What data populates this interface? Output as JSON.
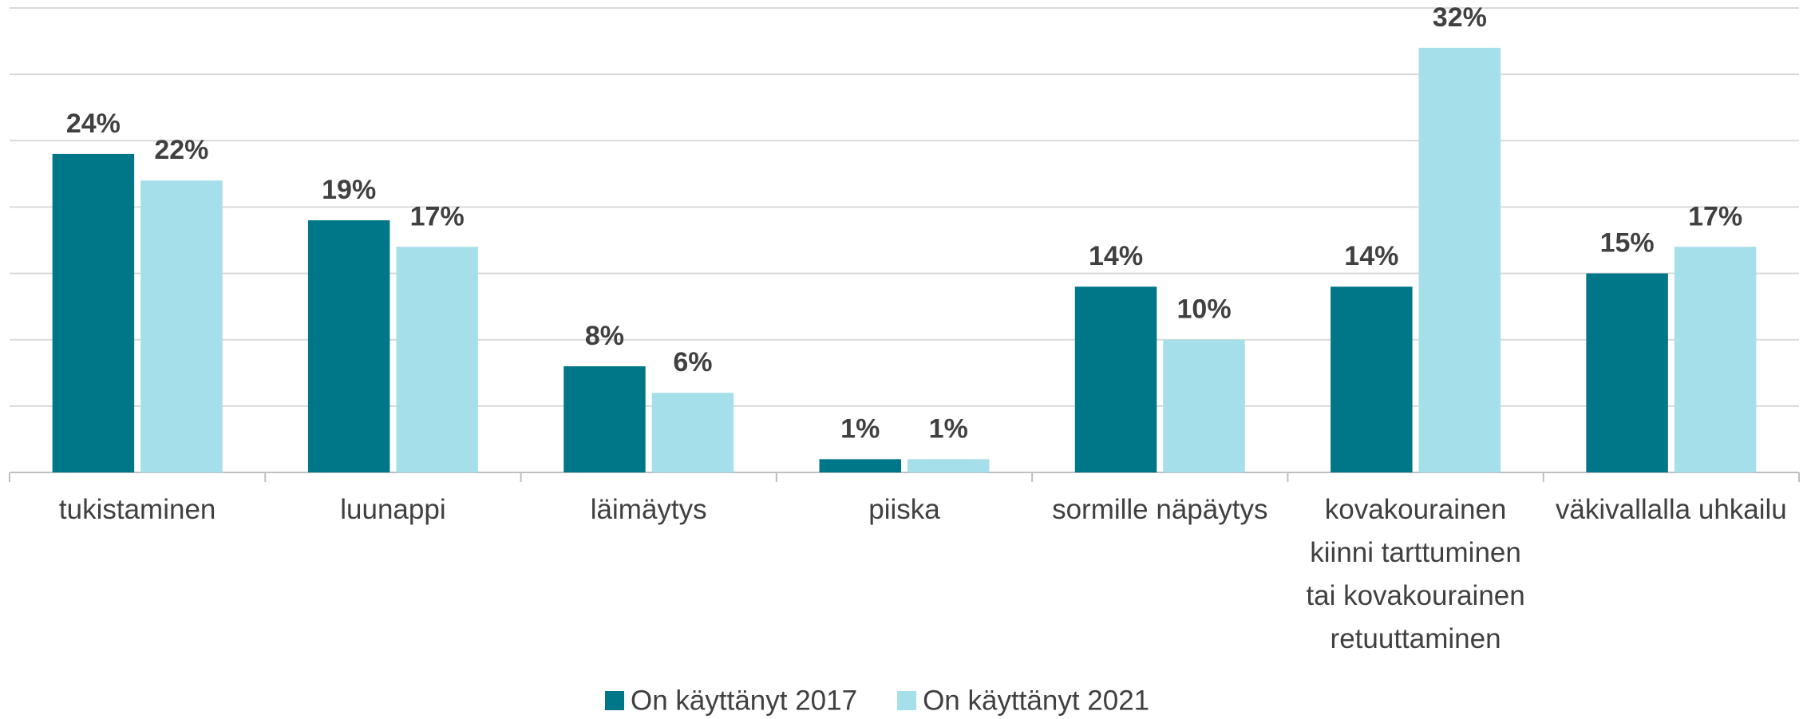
{
  "chart_data": {
    "type": "bar",
    "categories": [
      "tukistaminen",
      "luunappi",
      "läimäytys",
      "piiska",
      "sormille näpäytys",
      "kovakourainen kiinni tarttuminen tai kovakourainen retuuttaminen",
      "väkivallalla uhkailu"
    ],
    "series": [
      {
        "name": "On käyttänyt 2017",
        "color": "#007789",
        "values": [
          24,
          19,
          8,
          1,
          14,
          14,
          15
        ],
        "value_labels": [
          "24%",
          "19%",
          "8%",
          "1%",
          "14%",
          "14%",
          "15%"
        ]
      },
      {
        "name": "On käyttänyt 2021",
        "color": "#a5dfe9",
        "values": [
          22,
          17,
          6,
          1,
          10,
          32,
          17
        ],
        "value_labels": [
          "22%",
          "17%",
          "6%",
          "1%",
          "10%",
          "32%",
          "17%"
        ]
      }
    ],
    "ylim": [
      0,
      35
    ],
    "yticks": [
      0,
      5,
      10,
      15,
      20,
      25,
      30,
      35
    ],
    "grid": true,
    "legend": "bottom"
  }
}
